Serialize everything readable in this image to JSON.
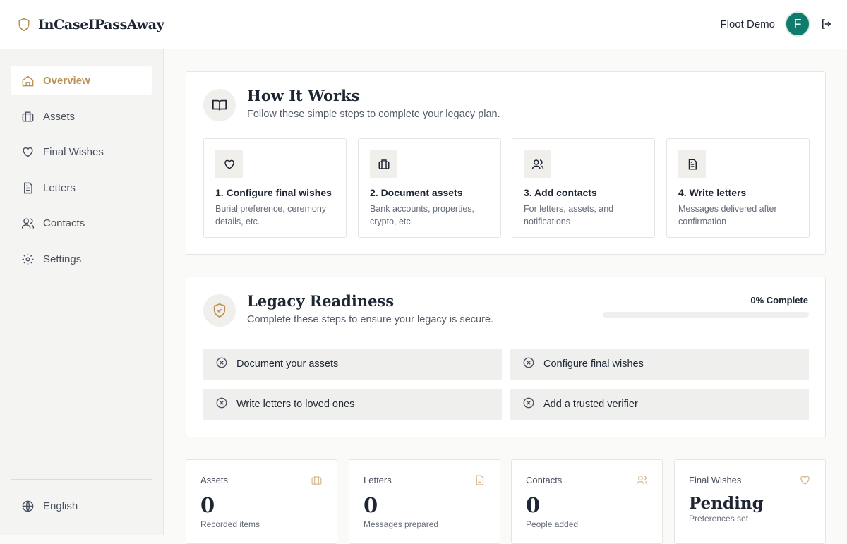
{
  "app": {
    "name": "InCaseIPassAway"
  },
  "user": {
    "name": "Floot Demo",
    "initial": "F"
  },
  "sidebar": {
    "items": [
      {
        "label": "Overview",
        "icon": "home-icon"
      },
      {
        "label": "Assets",
        "icon": "briefcase-icon"
      },
      {
        "label": "Final Wishes",
        "icon": "heart-icon"
      },
      {
        "label": "Letters",
        "icon": "document-icon"
      },
      {
        "label": "Contacts",
        "icon": "users-icon"
      },
      {
        "label": "Settings",
        "icon": "gear-icon"
      }
    ],
    "language": "English"
  },
  "how": {
    "title": "How It Works",
    "subtitle": "Follow these simple steps to complete your legacy plan.",
    "steps": [
      {
        "title": "1. Configure final wishes",
        "desc": "Burial preference, ceremony details, etc."
      },
      {
        "title": "2. Document assets",
        "desc": "Bank accounts, properties, crypto, etc."
      },
      {
        "title": "3. Add contacts",
        "desc": "For letters, assets, and notifications"
      },
      {
        "title": "4. Write letters",
        "desc": "Messages delivered after confirmation"
      }
    ]
  },
  "readiness": {
    "title": "Legacy Readiness",
    "subtitle": "Complete these steps to ensure your legacy is secure.",
    "progress_label": "0% Complete",
    "progress": 0,
    "items": [
      "Document your assets",
      "Configure final wishes",
      "Write letters to loved ones",
      "Add a trusted verifier"
    ]
  },
  "stats": [
    {
      "label": "Assets",
      "value": "0",
      "sub": "Recorded items"
    },
    {
      "label": "Letters",
      "value": "0",
      "sub": "Messages prepared"
    },
    {
      "label": "Contacts",
      "value": "0",
      "sub": "People added"
    },
    {
      "label": "Final Wishes",
      "value": "Pending",
      "sub": "Preferences set"
    }
  ],
  "colors": {
    "accent": "#b8925a",
    "avatar": "#0f7b6c"
  }
}
